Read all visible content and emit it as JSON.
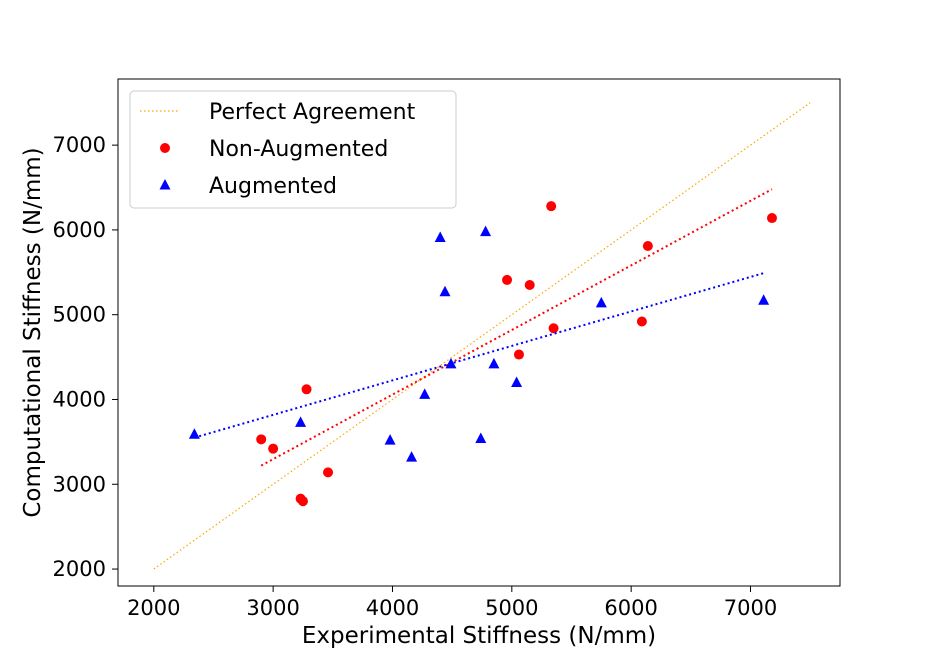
{
  "chart_data": {
    "type": "scatter",
    "title": "",
    "xlabel": "Experimental Stiffness (N/mm)",
    "ylabel": "Computational Stiffness (N/mm)",
    "xlim": [
      1700,
      7750
    ],
    "ylim": [
      1800,
      7780
    ],
    "x_ticks": [
      2000,
      3000,
      4000,
      5000,
      6000,
      7000
    ],
    "y_ticks": [
      2000,
      3000,
      4000,
      5000,
      6000,
      7000
    ],
    "grid": false,
    "legend_position": "top-left",
    "colors": {
      "perfect": "#ffa500",
      "non_augmented": "#ff0000",
      "augmented": "#0000ff"
    },
    "legend": [
      {
        "key": "perfect",
        "label": "Perfect Agreement",
        "marker": "dotted-line"
      },
      {
        "key": "non_augmented",
        "label": "Non-Augmented",
        "marker": "circle"
      },
      {
        "key": "augmented",
        "label": "Augmented",
        "marker": "triangle"
      }
    ],
    "series": [
      {
        "key": "perfect",
        "name": "Perfect Agreement",
        "kind": "line",
        "x": [
          2000,
          7500
        ],
        "y": [
          2000,
          7500
        ]
      },
      {
        "key": "non_augmented",
        "name": "Non-Augmented",
        "kind": "scatter",
        "marker": "circle",
        "points": [
          [
            2900,
            3530
          ],
          [
            3000,
            3420
          ],
          [
            3230,
            2830
          ],
          [
            3250,
            2800
          ],
          [
            3280,
            4120
          ],
          [
            3460,
            3140
          ],
          [
            4960,
            5410
          ],
          [
            5060,
            4530
          ],
          [
            5150,
            5350
          ],
          [
            5330,
            6280
          ],
          [
            5350,
            4840
          ],
          [
            6090,
            4920
          ],
          [
            6140,
            5810
          ],
          [
            7180,
            6140
          ]
        ],
        "fit": {
          "x": [
            2900,
            7180
          ],
          "y": [
            3220,
            6480
          ]
        }
      },
      {
        "key": "augmented",
        "name": "Augmented",
        "kind": "scatter",
        "marker": "triangle",
        "points": [
          [
            2340,
            3590
          ],
          [
            3230,
            3730
          ],
          [
            3980,
            3520
          ],
          [
            4160,
            3320
          ],
          [
            4270,
            4060
          ],
          [
            4400,
            5910
          ],
          [
            4440,
            5270
          ],
          [
            4490,
            4420
          ],
          [
            4740,
            3540
          ],
          [
            4780,
            5980
          ],
          [
            4850,
            4420
          ],
          [
            5040,
            4200
          ],
          [
            5750,
            5140
          ],
          [
            7110,
            5170
          ]
        ],
        "fit": {
          "x": [
            2340,
            7110
          ],
          "y": [
            3550,
            5490
          ]
        }
      }
    ]
  }
}
